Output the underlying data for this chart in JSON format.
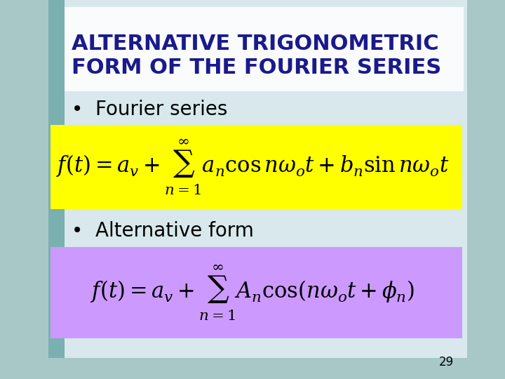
{
  "title_line1": "ALTERNATIVE TRIGONOMETRIC",
  "title_line2": "FORM OF THE FOURIER SERIES",
  "title_color": "#1a1a8c",
  "title_bg_color": "#ffffff",
  "title_fontsize": 22,
  "bullet1_text": "Fourier series",
  "bullet2_text": "Alternative form",
  "bullet_fontsize": 20,
  "eq1_latex": "f(t) = a_v + \\sum_{n=1}^{\\infty} a_n \\cos n\\omega_o t + b_n \\sin n\\omega_o t",
  "eq2_latex": "f(t) = a_v + \\sum_{n=1}^{\\infty} A_n \\cos(n\\omega_o t + \\phi_n)",
  "eq1_bg": "#ffff00",
  "eq2_bg": "#cc99ff",
  "eq_fontsize": 22,
  "slide_bg": "#a8c8c8",
  "content_bg": "#ddeeff",
  "page_num": "29",
  "left_bar_color": "#7ab0b0"
}
